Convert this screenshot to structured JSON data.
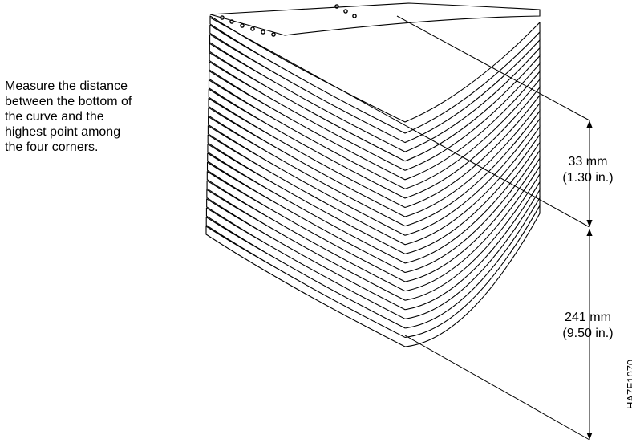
{
  "instruction_lines": [
    "Measure the distance",
    "between the bottom of",
    "the curve and the",
    "highest point among",
    "the four corners."
  ],
  "dimensions": {
    "upper": {
      "metric": "33 mm",
      "imperial": "(1.30 in.)"
    },
    "lower": {
      "metric": "241 mm",
      "imperial": "(9.50 in.)"
    }
  },
  "figure_id": "HA7F1070",
  "colors": {
    "ink": "#000000",
    "background": "#ffffff"
  }
}
